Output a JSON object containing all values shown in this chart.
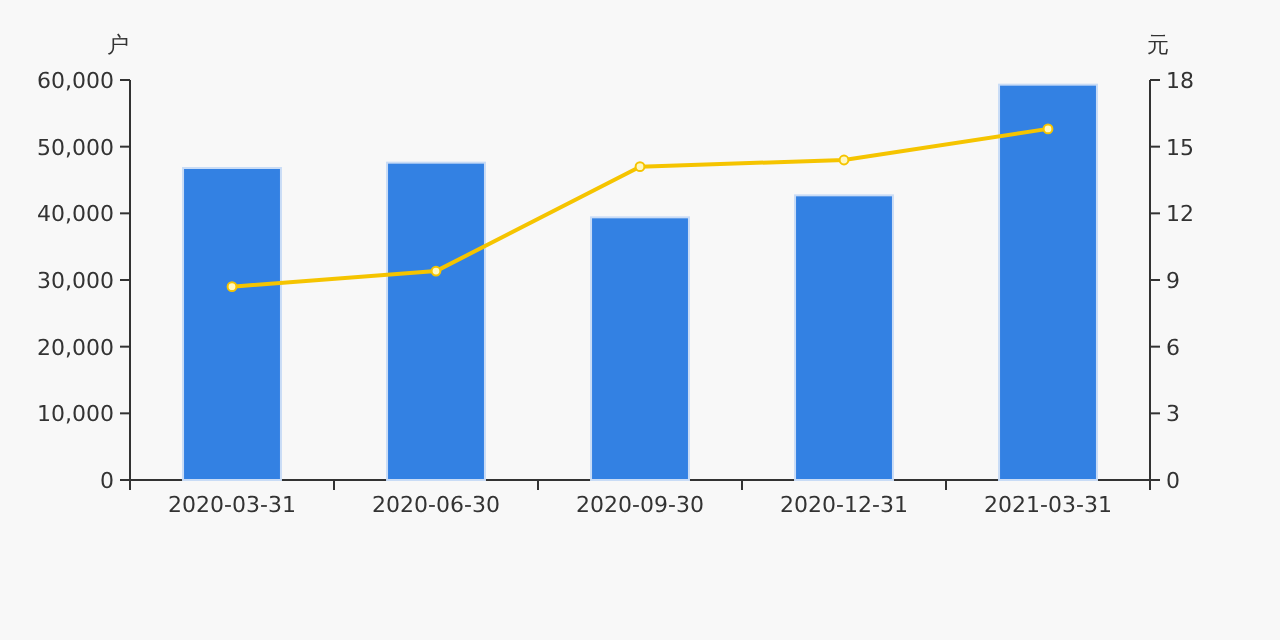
{
  "chart_data": {
    "type": "bar",
    "ylabel": "户",
    "y2label": "元",
    "categories": [
      "2020-03-31",
      "2020-06-30",
      "2020-09-30",
      "2020-12-31",
      "2021-03-31"
    ],
    "series": [
      {
        "color": "#3381e3",
        "values": [
          46800,
          47600,
          39400,
          42700,
          59300
        ]
      },
      {
        "type": "line",
        "axis": "y2",
        "color": "#f5c400",
        "marker": "circle",
        "values": [
          8.7,
          9.4,
          14.1,
          14.4,
          15.8
        ]
      }
    ],
    "ylim": [
      0,
      60000
    ],
    "yticks": [
      {
        "value": 0,
        "label": "0"
      },
      {
        "value": 10000,
        "label": "10,000"
      },
      {
        "value": 20000,
        "label": "20,000"
      },
      {
        "value": 30000,
        "label": "30,000"
      },
      {
        "value": 40000,
        "label": "40,000"
      },
      {
        "value": 50000,
        "label": "50,000"
      },
      {
        "value": 60000,
        "label": "60,000"
      }
    ],
    "y2lim": [
      0,
      18
    ],
    "y2ticks": [
      0,
      3,
      6,
      9,
      12,
      15,
      18
    ],
    "grid": false
  }
}
